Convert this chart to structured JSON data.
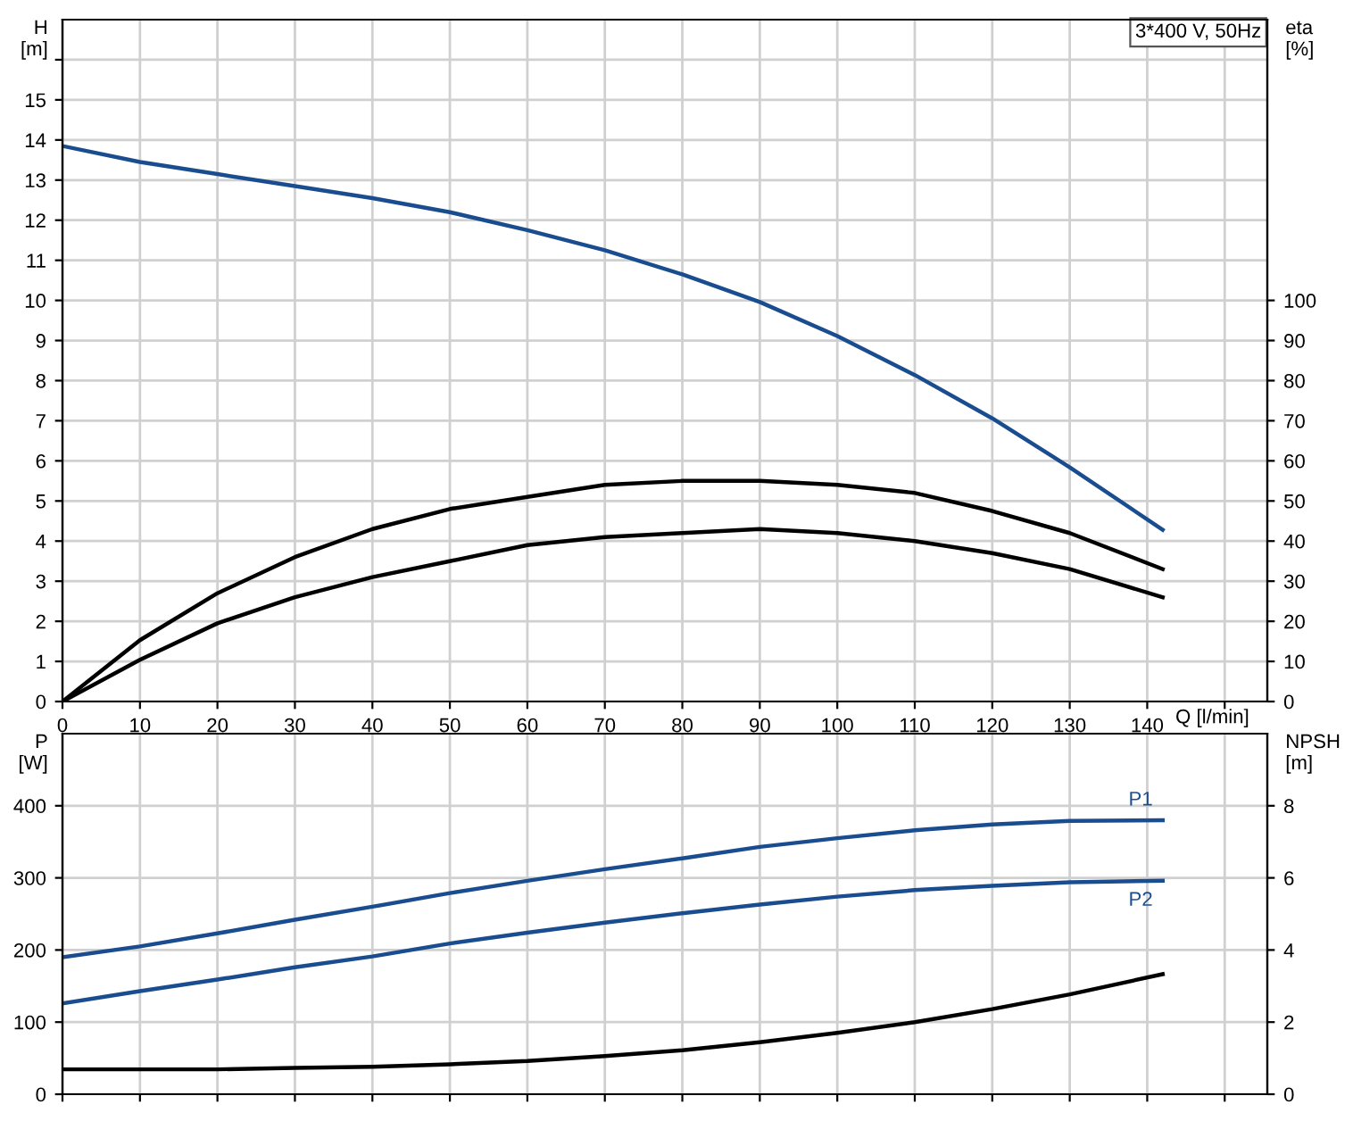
{
  "chart_data": [
    {
      "type": "line",
      "xlabel": "Q [l/min]",
      "ylabel": "H\n[m]",
      "y2label": "eta\n[%]",
      "annotations": [
        "3*400 V, 50Hz"
      ],
      "x": [
        0,
        10,
        20,
        30,
        40,
        50,
        60,
        70,
        80,
        90,
        100,
        110,
        120,
        130,
        142
      ],
      "series": [
        {
          "color": "#1a4d8f",
          "values": [
            13.85,
            13.45,
            13.15,
            12.85,
            12.55,
            12.2,
            11.75,
            11.25,
            10.65,
            9.96,
            9.11,
            8.14,
            7.06,
            5.84,
            4.28
          ]
        },
        {
          "color": "#000000",
          "axis": "y2",
          "values": [
            0,
            15.3,
            27,
            36,
            43,
            48,
            51,
            54,
            55,
            55,
            54,
            52,
            47.5,
            42,
            33
          ]
        },
        {
          "color": "#000000",
          "axis": "y2",
          "values": [
            0,
            10.4,
            19.5,
            26,
            31,
            35,
            39,
            41,
            42,
            43,
            42,
            40,
            37,
            33,
            26
          ]
        }
      ],
      "xlim": [
        0,
        155.5
      ],
      "xticks": [
        0,
        10,
        20,
        30,
        40,
        50,
        60,
        70,
        80,
        90,
        100,
        110,
        120,
        130,
        140,
        {
          "value": 150,
          "label": null
        }
      ],
      "ylim": [
        0,
        17
      ],
      "yticks": [
        0,
        1,
        2,
        3,
        4,
        5,
        6,
        7,
        8,
        9,
        10,
        11,
        12,
        13,
        14,
        15,
        {
          "value": 16,
          "label": null
        }
      ],
      "y2lim": [
        0,
        170
      ],
      "y2ticks": [
        0,
        10,
        20,
        30,
        40,
        50,
        60,
        70,
        80,
        90,
        100
      ],
      "grid": true,
      "legend": false
    },
    {
      "type": "line",
      "ylabel": "P\n[W]",
      "y2label": "NPSH\n[m]",
      "x": [
        0,
        10,
        20,
        30,
        40,
        50,
        60,
        70,
        80,
        90,
        100,
        110,
        120,
        130,
        142
      ],
      "series": [
        {
          "name": "P1",
          "color": "#1a4d8f",
          "values": [
            190,
            205,
            223,
            242,
            260,
            279,
            296,
            312,
            327,
            343,
            355,
            366,
            374,
            379,
            380
          ]
        },
        {
          "name": "P2",
          "color": "#1a4d8f",
          "values": [
            126,
            143,
            159,
            176,
            191,
            209,
            224,
            238,
            251,
            263,
            274,
            283,
            289,
            294,
            296
          ]
        },
        {
          "color": "#000000",
          "axis": "y2",
          "values": [
            0.69,
            0.69,
            0.69,
            0.73,
            0.76,
            0.83,
            0.92,
            1.06,
            1.22,
            1.44,
            1.7,
            2.0,
            2.36,
            2.77,
            3.33
          ]
        }
      ],
      "xlim": [
        0,
        155.5
      ],
      "xticks": [
        0,
        10,
        20,
        30,
        40,
        50,
        60,
        70,
        80,
        90,
        100,
        110,
        120,
        130,
        140,
        150
      ],
      "ylim": [
        0,
        500
      ],
      "yticks": [
        0,
        100,
        200,
        300,
        400
      ],
      "y2lim": [
        0,
        10
      ],
      "y2ticks": [
        0,
        2,
        4,
        6,
        8
      ],
      "tick_labels": "y",
      "grid": true,
      "legend": false
    }
  ]
}
